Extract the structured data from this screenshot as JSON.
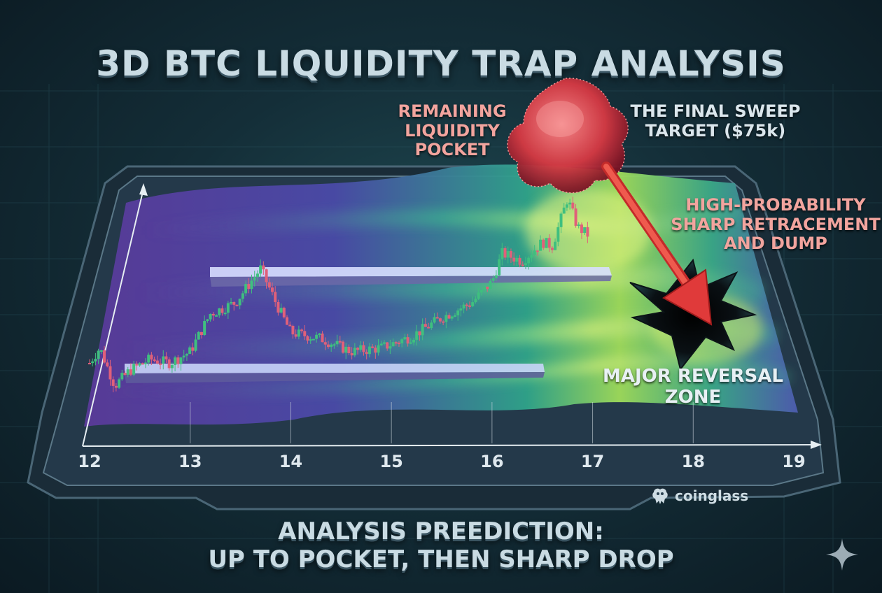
{
  "title": "3D BTC LIQUIDITY TRAP ANALYSIS",
  "annotations": {
    "pocket": [
      "REMAINING",
      "LIQUIDITY",
      "POCKET"
    ],
    "target": [
      "THE FINAL SWEEP",
      "TARGET ($75k)"
    ],
    "retracement": [
      "HIGH-PROBABILITY",
      "SHARP RETRACEMENT",
      "AND DUMP"
    ],
    "reversal": [
      "MAJOR REVERSAL",
      "ZONE"
    ]
  },
  "footer": [
    "ANALYSIS PREEDICTION:",
    "UP TO POCKET, THEN SHARP DROP"
  ],
  "watermark": "coinglass",
  "colors": {
    "up_candle": "#3fbf7f",
    "down_candle": "#e0607a",
    "arrow": "#e03a3a",
    "pocket": "#e0454a"
  },
  "icons": [
    "coinglass-logo-icon",
    "sparkle-icon"
  ],
  "chart_data": {
    "type": "candlestick",
    "x_ticks": [
      "12",
      "13",
      "14",
      "15",
      "16",
      "17",
      "18",
      "19"
    ],
    "xlim": [
      12,
      19
    ],
    "price_path": [
      [
        12.0,
        0.3
      ],
      [
        12.1,
        0.38
      ],
      [
        12.25,
        0.18
      ],
      [
        12.4,
        0.26
      ],
      [
        12.6,
        0.32
      ],
      [
        12.8,
        0.3
      ],
      [
        13.0,
        0.36
      ],
      [
        13.2,
        0.56
      ],
      [
        13.45,
        0.62
      ],
      [
        13.7,
        0.8
      ],
      [
        13.85,
        0.62
      ],
      [
        14.0,
        0.46
      ],
      [
        14.3,
        0.43
      ],
      [
        14.6,
        0.36
      ],
      [
        14.9,
        0.38
      ],
      [
        15.2,
        0.44
      ],
      [
        15.5,
        0.54
      ],
      [
        15.8,
        0.62
      ],
      [
        16.0,
        0.73
      ],
      [
        16.1,
        0.88
      ],
      [
        16.3,
        0.84
      ],
      [
        16.5,
        0.94
      ],
      [
        16.6,
        0.92
      ],
      [
        16.75,
        1.17
      ],
      [
        16.85,
        1.02
      ],
      [
        16.95,
        0.98
      ]
    ],
    "resistance_level": 0.82,
    "support_level": 0.38,
    "target_label": "$75k"
  }
}
